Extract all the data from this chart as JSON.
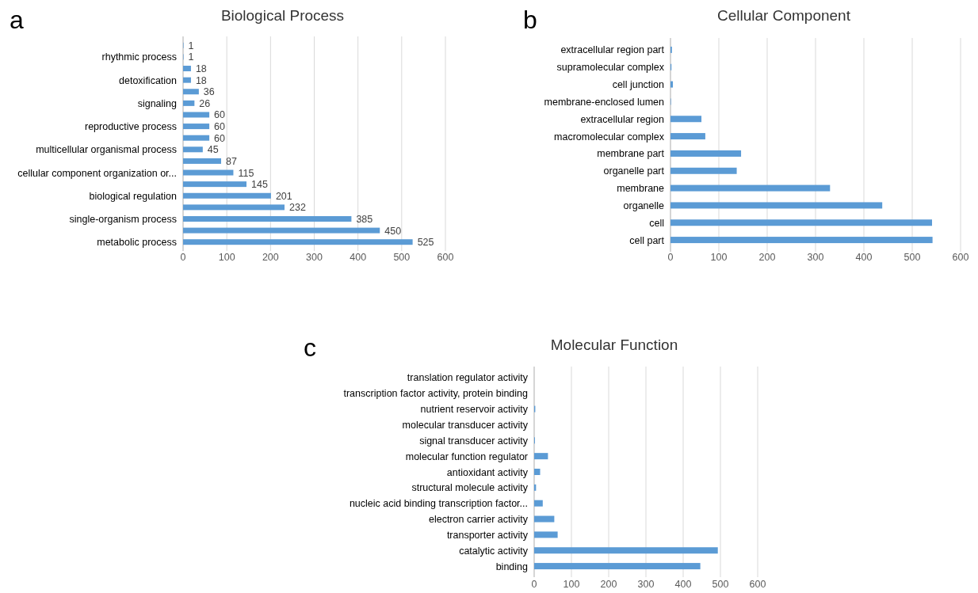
{
  "chart_data": [
    {
      "type": "bar",
      "orientation": "horizontal",
      "title": "Biological Process",
      "annotations": [
        "a"
      ],
      "categories": [
        null,
        "rhythmic process",
        null,
        "detoxification",
        null,
        "signaling",
        null,
        "reproductive process",
        null,
        "multicellular organismal process",
        null,
        "cellular component organization or...",
        null,
        "biological regulation",
        null,
        "single-organism process",
        null,
        "metabolic process"
      ],
      "values": [
        1,
        1,
        18,
        18,
        36,
        26,
        60,
        60,
        60,
        45,
        87,
        115,
        145,
        201,
        232,
        385,
        450,
        525
      ],
      "color": "#5b9bd5",
      "data_labels": true,
      "xlim": [
        0,
        600
      ],
      "xticks": [
        0,
        100,
        200,
        300,
        400,
        500,
        600
      ],
      "grid": "x"
    },
    {
      "type": "bar",
      "orientation": "horizontal",
      "title": "Cellular Component",
      "annotations": [
        "b"
      ],
      "categories": [
        "extracellular region part",
        "supramolecular complex",
        "cell junction",
        "membrane-enclosed lumen",
        "extracellular region",
        "macromolecular complex",
        "membrane part",
        "organelle part",
        "membrane",
        "organelle",
        "cell",
        "cell part"
      ],
      "values": [
        3,
        2,
        5,
        1,
        64,
        72,
        146,
        137,
        330,
        438,
        541,
        542
      ],
      "color": "#5b9bd5",
      "xlim": [
        0,
        600
      ],
      "xticks": [
        0,
        100,
        200,
        300,
        400,
        500,
        600
      ],
      "grid": "x"
    },
    {
      "type": "bar",
      "orientation": "horizontal",
      "title": "Molecular Function",
      "annotations": [
        "c"
      ],
      "categories": [
        "translation regulator activity",
        "transcription factor activity, protein binding",
        "nutrient reservoir activity",
        "molecular transducer activity",
        "signal transducer activity",
        "molecular function regulator",
        "antioxidant activity",
        "structural molecule activity",
        "nucleic acid binding transcription factor...",
        "electron carrier activity",
        "transporter activity",
        "catalytic activity",
        "binding"
      ],
      "values": [
        null,
        null,
        3,
        null,
        2,
        37,
        16,
        5,
        23,
        54,
        63,
        493,
        446
      ],
      "color": "#5b9bd5",
      "xlim": [
        0,
        600
      ],
      "xticks": [
        0,
        100,
        200,
        300,
        400,
        500,
        600
      ],
      "grid": "x"
    }
  ]
}
